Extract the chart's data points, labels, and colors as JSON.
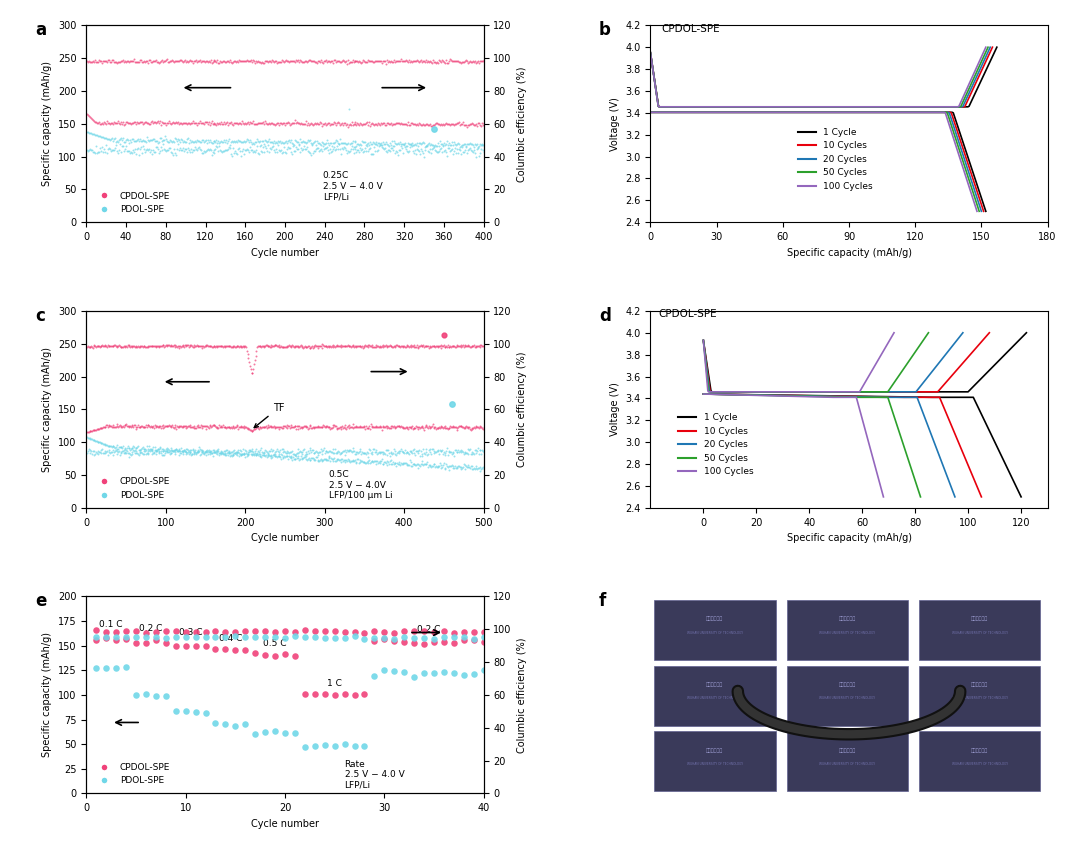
{
  "panel_a": {
    "title": "a",
    "xlabel": "Cycle number",
    "ylabel_left": "Specific capacity (mAh/g)",
    "ylabel_right": "Columbic efficiency (%)",
    "xlim": [
      0,
      400
    ],
    "ylim_left": [
      0,
      300
    ],
    "ylim_right": [
      0,
      120
    ],
    "annotation": "0.25C\n2.5 V - 4.0 V\nLFP/Li",
    "n_cycles": 400,
    "xticks": [
      0,
      40,
      80,
      120,
      160,
      200,
      240,
      280,
      320,
      360,
      400
    ]
  },
  "panel_b": {
    "title": "b",
    "xlabel": "Specific capacity (mAh/g)",
    "ylabel": "Voltage (V)",
    "xlim": [
      0,
      180
    ],
    "ylim": [
      2.4,
      4.2
    ],
    "annotation": "CPDOL-SPE",
    "cycles": [
      1,
      10,
      20,
      50,
      100
    ],
    "cycle_labels": [
      "1 Cycle",
      "10 Cycles",
      "20 Cycles",
      "50 Cycles",
      "100 Cycles"
    ],
    "colors": [
      "#000000",
      "#e8000d",
      "#1f77b4",
      "#2ca02c",
      "#9467bd"
    ],
    "charge_caps": [
      157,
      155,
      154,
      153,
      152
    ],
    "discharge_caps": [
      152,
      151,
      150,
      149,
      148
    ],
    "xticks": [
      0,
      30,
      60,
      90,
      120,
      150,
      180
    ],
    "yticks": [
      2.4,
      2.6,
      2.8,
      3.0,
      3.2,
      3.4,
      3.6,
      3.8,
      4.0,
      4.2
    ]
  },
  "panel_c": {
    "title": "c",
    "xlabel": "Cycle number",
    "ylabel_left": "Specific capacity (mAh/g)",
    "ylabel_right": "Columbic efficiency (%)",
    "xlim": [
      0,
      500
    ],
    "ylim_left": [
      0,
      300
    ],
    "ylim_right": [
      0,
      120
    ],
    "annotation": "0.5C\n2.5 V - 4.0V\nLFP/100 μm Li",
    "n_cycles": 500,
    "xticks": [
      0,
      100,
      200,
      300,
      400,
      500
    ]
  },
  "panel_d": {
    "title": "d",
    "xlabel": "Specific capacity (mAh/g)",
    "ylabel": "Voltage (V)",
    "xlim": [
      -20,
      130
    ],
    "ylim": [
      2.4,
      4.2
    ],
    "annotation": "CPDOL-SPE",
    "cycles": [
      1,
      10,
      20,
      50,
      100
    ],
    "cycle_labels": [
      "1 Cycle",
      "10 Cycles",
      "20 Cycles",
      "50 Cycles",
      "100 Cycles"
    ],
    "colors": [
      "#000000",
      "#e8000d",
      "#1f77b4",
      "#2ca02c",
      "#9467bd"
    ],
    "discharge_caps": [
      120,
      105,
      95,
      82,
      68
    ],
    "charge_caps": [
      122,
      108,
      98,
      85,
      72
    ],
    "xticks": [
      0,
      20,
      40,
      60,
      80,
      100,
      120
    ],
    "yticks": [
      2.4,
      2.6,
      2.8,
      3.0,
      3.2,
      3.4,
      3.6,
      3.8,
      4.0,
      4.2
    ]
  },
  "panel_e": {
    "title": "e",
    "xlabel": "Cycle number",
    "ylabel_left": "Specific capacity (mAh/g)",
    "ylabel_right": "Columbic efficiency (%)",
    "xlim": [
      0,
      40
    ],
    "ylim_left": [
      0,
      200
    ],
    "ylim_right": [
      0,
      120
    ],
    "annotation": "Rate\n2.5 V - 4.0 V\nLFP/Li",
    "rate_labels": [
      "0.1 C",
      "0.2 C",
      "0.3 C",
      "0.4 C",
      "0.5 C",
      "1 C",
      "0.2 C"
    ],
    "rate_ranges": [
      [
        1,
        4
      ],
      [
        5,
        8
      ],
      [
        9,
        12
      ],
      [
        13,
        16
      ],
      [
        17,
        21
      ],
      [
        22,
        28
      ],
      [
        29,
        40
      ]
    ],
    "cpdol_caps": [
      157,
      154,
      150,
      146,
      141,
      100,
      154
    ],
    "pdol_caps": [
      128,
      100,
      83,
      72,
      62,
      48,
      122
    ],
    "xticks": [
      0,
      10,
      20,
      30,
      40
    ]
  },
  "colors": {
    "cpdol": "#f0427a",
    "pdol": "#70d7e8",
    "background": "#ffffff"
  }
}
